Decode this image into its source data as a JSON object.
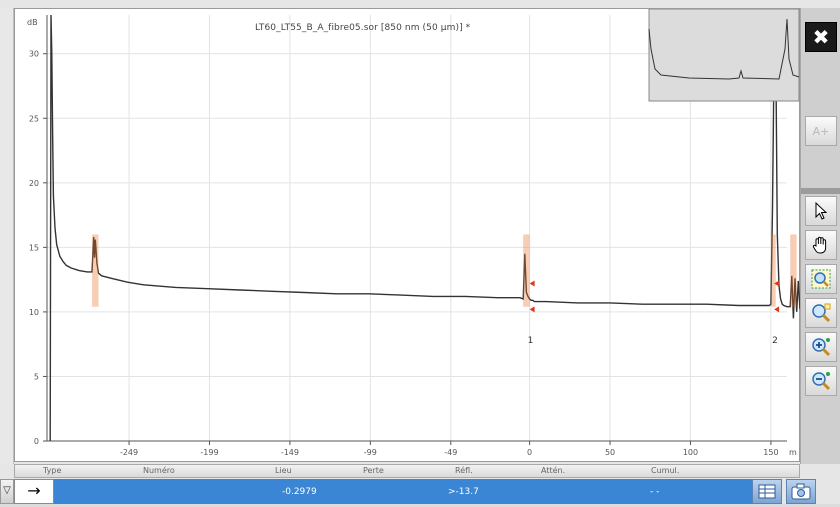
{
  "window": {
    "title": "LT60_LT55_B_A_fibre05.sor [850 nm (50 µm)] *"
  },
  "toolbar": {
    "close_icon": "close-icon",
    "dim_button_label": "A+",
    "tools": [
      "pointer-icon",
      "hand-pan-icon",
      "zoom-fit-icon",
      "zoom-window-icon",
      "zoom-in-icon",
      "zoom-out-icon"
    ]
  },
  "chart_data": {
    "type": "line",
    "title": "LT60_LT55_B_A_fibre05.sor [850 nm (50 µm)] *",
    "xlabel": "m",
    "ylabel": "dB",
    "xlim": [
      -300,
      160
    ],
    "ylim": [
      0,
      33
    ],
    "x_ticks": [
      -249,
      -199,
      -149,
      -99,
      -49,
      0,
      50,
      100,
      150
    ],
    "y_ticks": [
      0,
      5,
      10,
      15,
      20,
      25,
      30
    ],
    "y_unit_label": "dB",
    "x_unit_label": "m",
    "grid": true,
    "series": [
      {
        "color": "#333333",
        "x": [
          -298,
          -297.5,
          -297,
          -296.5,
          -296,
          -295,
          -294,
          -292,
          -290,
          -288,
          -285,
          -280,
          -275,
          -272,
          -271,
          -270.5,
          -270,
          -269,
          -268,
          -266,
          -260,
          -250,
          -240,
          -220,
          -200,
          -180,
          -160,
          -140,
          -120,
          -100,
          -80,
          -60,
          -40,
          -20,
          -6,
          -4,
          -3,
          -2,
          -1,
          0,
          1,
          2,
          3,
          10,
          30,
          50,
          70,
          90,
          110,
          130,
          145,
          149,
          150,
          151,
          152,
          153,
          154,
          155,
          156,
          157,
          158,
          160,
          162,
          163,
          164,
          165,
          166,
          167,
          168,
          170,
          172,
          174,
          176
        ],
        "y": [
          0,
          33,
          30,
          24,
          19,
          16.5,
          15.2,
          14.3,
          13.9,
          13.6,
          13.4,
          13.2,
          13.1,
          13.1,
          15.8,
          14.2,
          15.6,
          13.8,
          13.0,
          12.8,
          12.6,
          12.3,
          12.1,
          11.9,
          11.8,
          11.7,
          11.6,
          11.5,
          11.4,
          11.4,
          11.3,
          11.2,
          11.2,
          11.1,
          11.1,
          11.0,
          14.5,
          11.5,
          11.2,
          11.0,
          10.9,
          10.9,
          10.8,
          10.8,
          10.7,
          10.7,
          10.6,
          10.6,
          10.6,
          10.5,
          10.5,
          10.5,
          10.6,
          18,
          30,
          31,
          16,
          12,
          11,
          10.6,
          10.5,
          10.4,
          10.4,
          12.8,
          9.5,
          12.6,
          10.0,
          12.4,
          10.3,
          9.9,
          9.6,
          9.4,
          9.3
        ]
      }
    ],
    "events": [
      {
        "number": "1",
        "x": 0
      },
      {
        "number": "2",
        "x": 152
      }
    ]
  },
  "table": {
    "columns": [
      "Type",
      "Numéro",
      "Lieu",
      "Perte",
      "Réfl.",
      "Attén.",
      "Cumul."
    ],
    "selected_row": {
      "type_icon": "arrow-right-icon",
      "lieu": "-0.2979",
      "refl": ">-13.7",
      "cumul": "- -"
    }
  }
}
